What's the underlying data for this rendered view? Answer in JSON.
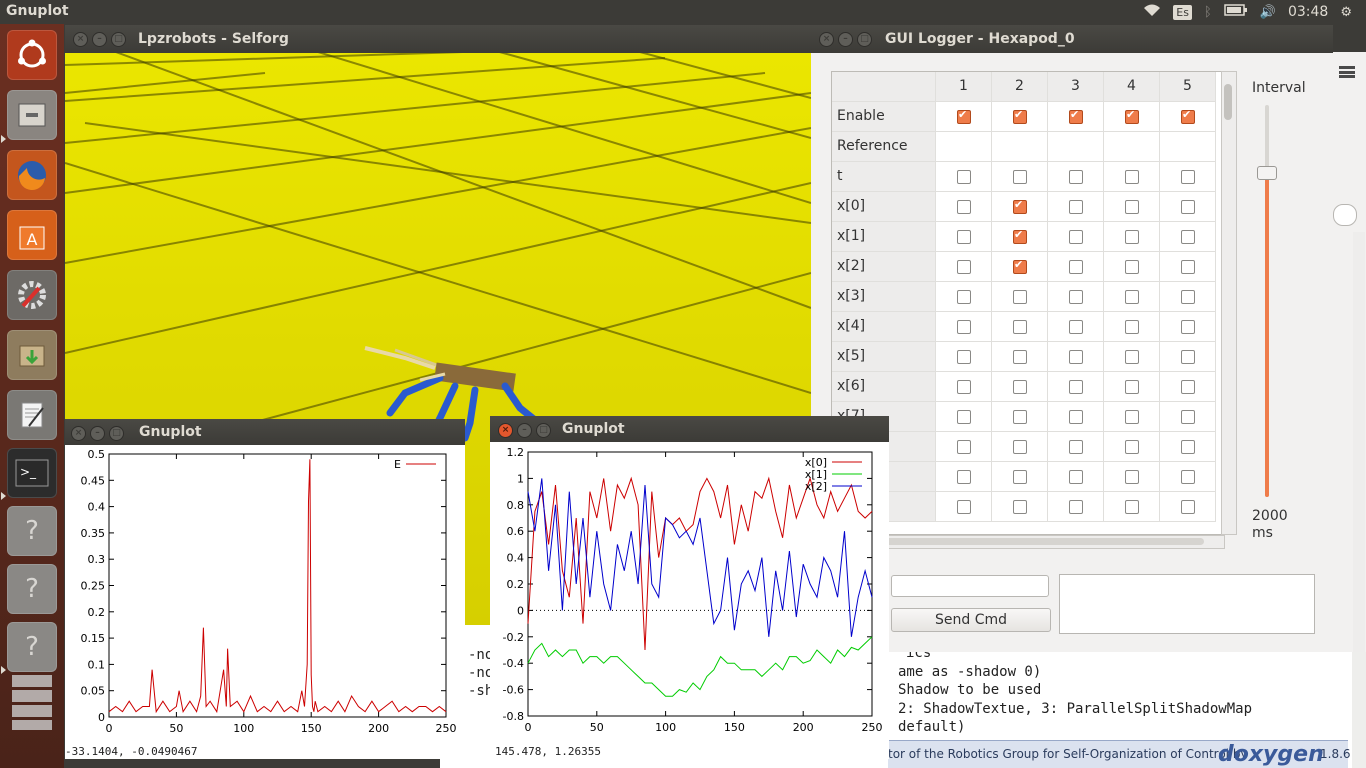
{
  "topbar": {
    "app_title": "Gnuplot",
    "keyboard": "Es",
    "time": "03:48"
  },
  "launcher": {
    "items": [
      "ubuntu",
      "files",
      "firefox",
      "software-center",
      "system-settings",
      "archive",
      "text-editor",
      "terminal",
      "unknown-app",
      "unknown-app",
      "unknown-app",
      "workspaces"
    ]
  },
  "sim_window": {
    "title": "Lpzrobots - Selforg",
    "ground_color": "#e6e000"
  },
  "background_text": {
    "lines": [
      "ics",
      "ame as -shadow 0)",
      "Shadow to be used",
      "2: ShadowTextue, 3: ParallelSplitShadowMap",
      "default)"
    ],
    "left_fragments": [
      "-no",
      "-no",
      "-sha"
    ],
    "footer": "tor of the Robotics Group for Self-Organization of Control by",
    "doxygen": "doxygen",
    "version": "1.8.6"
  },
  "logger": {
    "title": "GUI Logger - Hexapod_0",
    "columns": [
      "1",
      "2",
      "3",
      "4",
      "5"
    ],
    "rows": [
      {
        "label": "Enable",
        "checks": [
          true,
          true,
          true,
          true,
          true
        ]
      },
      {
        "label": "Reference",
        "checks": null
      },
      {
        "label": "t",
        "checks": [
          false,
          false,
          false,
          false,
          false
        ]
      },
      {
        "label": "x[0]",
        "checks": [
          false,
          true,
          false,
          false,
          false
        ]
      },
      {
        "label": "x[1]",
        "checks": [
          false,
          true,
          false,
          false,
          false
        ]
      },
      {
        "label": "x[2]",
        "checks": [
          false,
          true,
          false,
          false,
          false
        ]
      },
      {
        "label": "x[3]",
        "checks": [
          false,
          false,
          false,
          false,
          false
        ]
      },
      {
        "label": "x[4]",
        "checks": [
          false,
          false,
          false,
          false,
          false
        ]
      },
      {
        "label": "x[5]",
        "checks": [
          false,
          false,
          false,
          false,
          false
        ]
      },
      {
        "label": "x[6]",
        "checks": [
          false,
          false,
          false,
          false,
          false
        ]
      },
      {
        "label": "x[7]",
        "checks": [
          false,
          false,
          false,
          false,
          false
        ]
      },
      {
        "label": "",
        "checks": [
          false,
          false,
          false,
          false,
          false
        ]
      },
      {
        "label": "",
        "checks": [
          false,
          false,
          false,
          false,
          false
        ]
      },
      {
        "label": "",
        "checks": [
          false,
          false,
          false,
          false,
          false
        ]
      }
    ],
    "interval_label": "Interval",
    "interval_value": "2000",
    "interval_unit": "ms",
    "interval_fraction": 0.83,
    "send_cmd_label": "Send Cmd",
    "cmd_input_value": ""
  },
  "plot_left": {
    "title": "Gnuplot",
    "status": "-33.1404, -0.0490467",
    "chart_data": {
      "type": "line",
      "title": "",
      "xlim": [
        0,
        250
      ],
      "ylim": [
        0,
        0.5
      ],
      "xticks": [
        0,
        50,
        100,
        150,
        200,
        250
      ],
      "yticks": [
        "0",
        "0.05",
        "0.1",
        "0.15",
        "0.2",
        "0.25",
        "0.3",
        "0.35",
        "0.4",
        "0.45",
        "0.5"
      ],
      "legend": "top-right",
      "series": [
        {
          "name": "E",
          "color": "#cc0000",
          "x": [
            0,
            5,
            10,
            15,
            20,
            25,
            30,
            32,
            35,
            40,
            45,
            50,
            52,
            55,
            60,
            65,
            68,
            70,
            72,
            75,
            80,
            85,
            87,
            88,
            90,
            95,
            100,
            105,
            110,
            115,
            120,
            125,
            130,
            135,
            140,
            143,
            145,
            147,
            148,
            149,
            150,
            151,
            152,
            153,
            155,
            160,
            165,
            170,
            175,
            180,
            185,
            190,
            195,
            200,
            205,
            210,
            215,
            220,
            225,
            230,
            235,
            240,
            245,
            250
          ],
          "y": [
            0.01,
            0.02,
            0.01,
            0.03,
            0.01,
            0.02,
            0.02,
            0.09,
            0.01,
            0.03,
            0.01,
            0.02,
            0.05,
            0.01,
            0.03,
            0.01,
            0.04,
            0.17,
            0.02,
            0.03,
            0.01,
            0.09,
            0.02,
            0.13,
            0.02,
            0.03,
            0.01,
            0.04,
            0.01,
            0.02,
            0.01,
            0.03,
            0.01,
            0.02,
            0.01,
            0.05,
            0.02,
            0.1,
            0.41,
            0.49,
            0.08,
            0.02,
            0.01,
            0.03,
            0.01,
            0.02,
            0.01,
            0.03,
            0.01,
            0.04,
            0.02,
            0.01,
            0.03,
            0.01,
            0.02,
            0.03,
            0.01,
            0.02,
            0.01,
            0.02,
            0.02,
            0.01,
            0.02,
            0.01
          ]
        }
      ]
    }
  },
  "plot_right": {
    "title": "Gnuplot",
    "status": "145.478,  1.26355",
    "chart_data": {
      "type": "line",
      "title": "",
      "xlim": [
        0,
        250
      ],
      "ylim": [
        -0.8,
        1.2
      ],
      "xticks": [
        0,
        50,
        100,
        150,
        200,
        250
      ],
      "yticks": [
        "-0.8",
        "-0.6",
        "-0.4",
        "-0.2",
        "0",
        "0.2",
        "0.4",
        "0.6",
        "0.8",
        "1",
        "1.2"
      ],
      "legend": "top-right",
      "series": [
        {
          "name": "x[0]",
          "color": "#cc0000",
          "x": [
            0,
            5,
            10,
            15,
            20,
            25,
            30,
            35,
            40,
            45,
            50,
            55,
            60,
            65,
            70,
            75,
            80,
            85,
            90,
            95,
            100,
            105,
            110,
            115,
            120,
            125,
            130,
            135,
            140,
            145,
            150,
            155,
            160,
            165,
            170,
            175,
            180,
            185,
            190,
            195,
            200,
            205,
            210,
            215,
            220,
            225,
            230,
            235,
            240,
            245,
            250
          ],
          "y": [
            -0.1,
            0.75,
            0.9,
            0.5,
            0.95,
            0.3,
            0.1,
            0.7,
            -0.1,
            0.9,
            0.7,
            1.0,
            0.6,
            0.95,
            0.85,
            1.0,
            0.8,
            -0.3,
            0.9,
            0.4,
            0.7,
            0.65,
            0.7,
            0.6,
            0.65,
            0.9,
            1.0,
            0.9,
            0.7,
            0.95,
            0.5,
            0.8,
            0.6,
            0.9,
            0.85,
            1.0,
            0.75,
            0.55,
            0.95,
            0.7,
            0.85,
            1.0,
            0.8,
            0.7,
            0.9,
            0.75,
            0.85,
            0.95,
            0.75,
            0.7,
            0.75
          ]
        },
        {
          "name": "x[1]",
          "color": "#00cc00",
          "x": [
            0,
            5,
            10,
            15,
            20,
            25,
            30,
            35,
            40,
            45,
            50,
            55,
            60,
            65,
            70,
            75,
            80,
            85,
            90,
            95,
            100,
            105,
            110,
            115,
            120,
            125,
            130,
            135,
            140,
            145,
            150,
            155,
            160,
            165,
            170,
            175,
            180,
            185,
            190,
            195,
            200,
            205,
            210,
            215,
            220,
            225,
            230,
            235,
            240,
            245,
            250
          ],
          "y": [
            -0.4,
            -0.3,
            -0.25,
            -0.35,
            -0.3,
            -0.35,
            -0.3,
            -0.3,
            -0.4,
            -0.35,
            -0.35,
            -0.4,
            -0.35,
            -0.35,
            -0.4,
            -0.45,
            -0.5,
            -0.55,
            -0.55,
            -0.6,
            -0.65,
            -0.65,
            -0.6,
            -0.62,
            -0.55,
            -0.6,
            -0.5,
            -0.45,
            -0.35,
            -0.4,
            -0.4,
            -0.45,
            -0.45,
            -0.45,
            -0.5,
            -0.45,
            -0.4,
            -0.45,
            -0.35,
            -0.35,
            -0.4,
            -0.38,
            -0.3,
            -0.35,
            -0.4,
            -0.3,
            -0.35,
            -0.28,
            -0.3,
            -0.25,
            -0.2
          ]
        },
        {
          "name": "x[2]",
          "color": "#0000cc",
          "x": [
            0,
            5,
            10,
            15,
            20,
            25,
            30,
            35,
            40,
            45,
            50,
            55,
            60,
            65,
            70,
            75,
            80,
            85,
            90,
            95,
            100,
            105,
            110,
            115,
            120,
            125,
            130,
            135,
            140,
            145,
            150,
            155,
            160,
            165,
            170,
            175,
            180,
            185,
            190,
            195,
            200,
            205,
            210,
            215,
            220,
            225,
            230,
            235,
            240,
            245,
            250
          ],
          "y": [
            0.9,
            0.6,
            1.0,
            0.3,
            0.8,
            0.0,
            0.9,
            0.2,
            0.7,
            0.1,
            0.6,
            0.2,
            0.0,
            0.5,
            0.3,
            0.6,
            0.2,
            0.95,
            0.2,
            0.1,
            0.7,
            0.65,
            0.55,
            0.6,
            0.5,
            0.7,
            0.3,
            -0.1,
            0.0,
            0.4,
            -0.15,
            0.2,
            0.3,
            0.15,
            0.4,
            -0.2,
            0.3,
            0.0,
            0.45,
            -0.05,
            0.35,
            0.2,
            0.1,
            0.4,
            0.3,
            0.1,
            0.6,
            -0.2,
            0.1,
            0.3,
            0.1
          ]
        }
      ]
    }
  }
}
